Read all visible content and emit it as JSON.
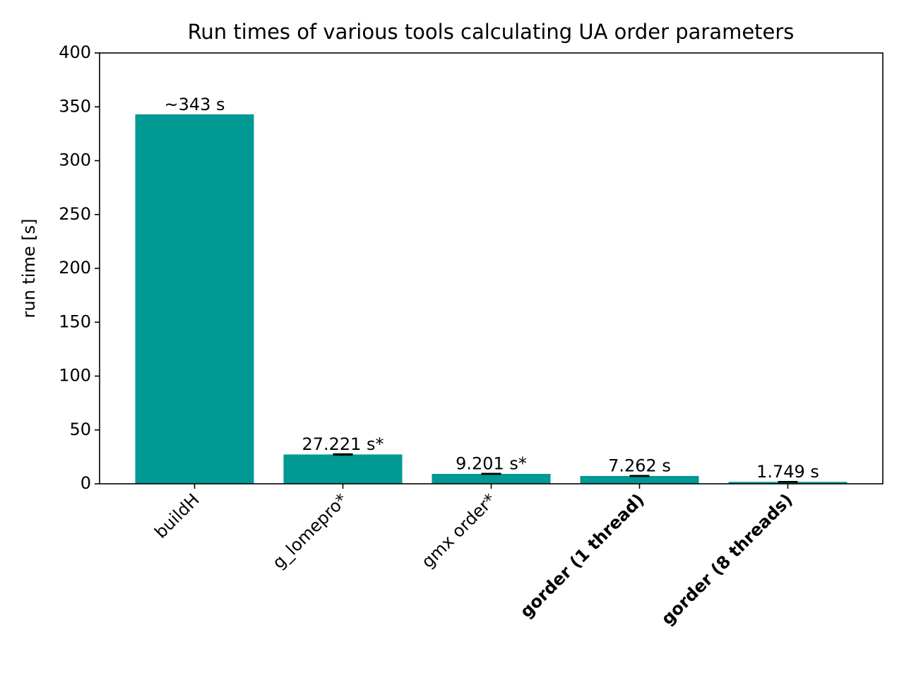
{
  "chart_data": {
    "type": "bar",
    "title": "Run times of various tools calculating UA order parameters",
    "y_label": "run time [s]",
    "categories": [
      "buildH",
      "g_lomepro*",
      "gmx order*",
      "gorder (1 thread)",
      "gorder (8 threads)"
    ],
    "category_bold": [
      false,
      false,
      false,
      true,
      true
    ],
    "values": [
      343,
      27.221,
      9.201,
      7.262,
      1.749
    ],
    "errors": [
      null,
      0.4,
      0.3,
      0.3,
      0.2
    ],
    "value_labels": [
      "~343 s",
      "27.221 s*",
      "9.201 s*",
      "7.262 s",
      "1.749 s"
    ],
    "color": "#009994",
    "ylim": [
      0,
      400
    ],
    "yticks": [
      0,
      50,
      100,
      150,
      200,
      250,
      300,
      350,
      400
    ],
    "grid": false
  }
}
